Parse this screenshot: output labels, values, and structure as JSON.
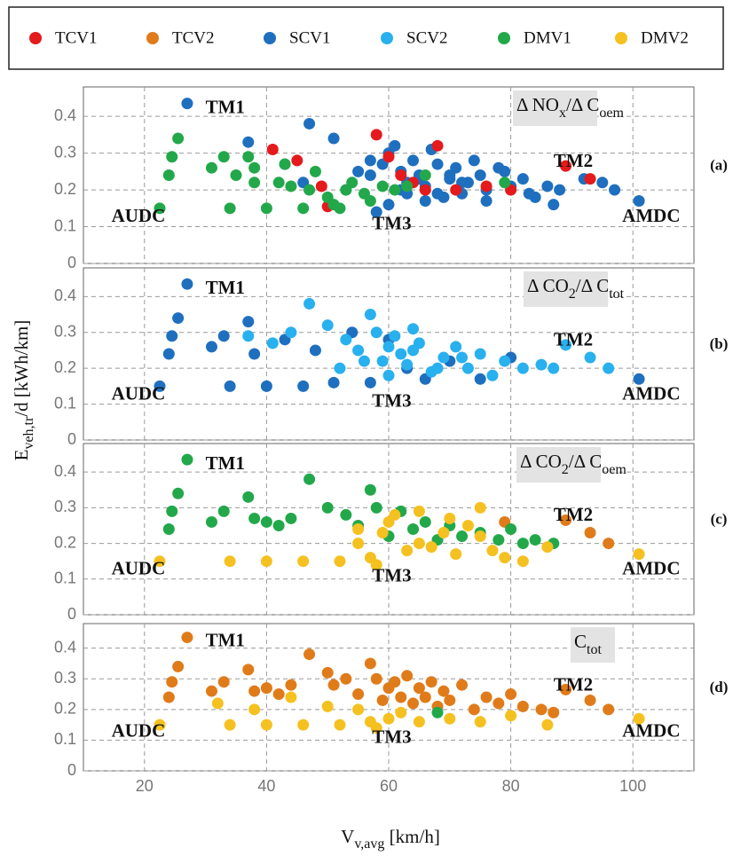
{
  "legend": [
    {
      "name": "TCV1",
      "color": "#e41a1c"
    },
    {
      "name": "TCV2",
      "color": "#e07b1a"
    },
    {
      "name": "SCV1",
      "color": "#1f6fbf"
    },
    {
      "name": "SCV2",
      "color": "#29b0ee"
    },
    {
      "name": "DMV1",
      "color": "#22a84a"
    },
    {
      "name": "DMV2",
      "color": "#f5c120"
    }
  ],
  "y_label": [
    "E",
    "veh,tr",
    "/d [kWh/km]"
  ],
  "x_label": [
    "V",
    "v,avg",
    " [km/h]"
  ],
  "chart_data": [
    {
      "type": "scatter",
      "panel_label": "(a)",
      "formula": [
        "Δ NO",
        "x",
        "/Δ C",
        "oem"
      ],
      "annotations": [
        "TM1",
        "TM2",
        "TM3",
        "AUDC",
        "AMDC"
      ],
      "xlim": [
        10,
        110
      ],
      "xticks": [
        20,
        40,
        60,
        80,
        100
      ],
      "ylim": [
        0,
        0.48
      ],
      "yticks": [
        0,
        0.1,
        0.2,
        0.3,
        0.4
      ],
      "grid": true,
      "series": [
        {
          "name": "SCV1",
          "x": [
            27,
            37,
            47,
            51,
            57,
            58,
            60,
            61,
            62,
            63,
            64,
            65,
            66,
            67,
            68,
            69,
            70,
            71,
            72,
            73,
            74,
            75,
            76,
            78,
            80,
            82,
            84,
            86,
            88,
            92,
            95,
            97,
            101,
            55,
            59,
            62,
            65,
            68,
            72,
            76,
            79,
            83,
            87,
            43,
            46,
            53,
            57,
            60,
            63,
            66,
            70
          ],
          "values": [
            0.435,
            0.33,
            0.38,
            0.34,
            0.28,
            0.14,
            0.3,
            0.32,
            0.25,
            0.22,
            0.28,
            0.24,
            0.21,
            0.31,
            0.27,
            0.18,
            0.23,
            0.26,
            0.19,
            0.22,
            0.28,
            0.24,
            0.17,
            0.26,
            0.21,
            0.23,
            0.18,
            0.21,
            0.2,
            0.23,
            0.22,
            0.2,
            0.17,
            0.25,
            0.27,
            0.2,
            0.23,
            0.19,
            0.22,
            0.2,
            0.25,
            0.19,
            0.16,
            0.27,
            0.22,
            0.2,
            0.24,
            0.16,
            0.19,
            0.17,
            0.24
          ]
        },
        {
          "name": "TCV1",
          "x": [
            41,
            45,
            49,
            50,
            58,
            60,
            62,
            64,
            66,
            68,
            71,
            76,
            80,
            89,
            93
          ],
          "values": [
            0.31,
            0.28,
            0.21,
            0.155,
            0.35,
            0.29,
            0.24,
            0.22,
            0.2,
            0.32,
            0.2,
            0.21,
            0.2,
            0.265,
            0.23
          ]
        },
        {
          "name": "DMV1",
          "x": [
            22.5,
            24,
            24.5,
            25.5,
            31,
            33,
            34,
            35,
            37,
            38,
            40,
            42,
            44,
            46,
            48,
            50,
            51,
            52,
            54,
            56,
            57,
            59,
            61,
            63,
            66,
            79,
            38,
            43,
            47,
            53
          ],
          "values": [
            0.15,
            0.24,
            0.29,
            0.34,
            0.26,
            0.29,
            0.15,
            0.24,
            0.29,
            0.26,
            0.15,
            0.22,
            0.21,
            0.15,
            0.25,
            0.18,
            0.16,
            0.15,
            0.22,
            0.19,
            0.17,
            0.21,
            0.2,
            0.21,
            0.24,
            0.22,
            0.22,
            0.27,
            0.2,
            0.2
          ]
        }
      ]
    },
    {
      "type": "scatter",
      "panel_label": "(b)",
      "formula": [
        "Δ CO",
        "2",
        "/Δ C",
        "tot"
      ],
      "annotations": [
        "TM1",
        "TM2",
        "TM3",
        "AUDC",
        "AMDC"
      ],
      "xlim": [
        10,
        110
      ],
      "xticks": [
        20,
        40,
        60,
        80,
        100
      ],
      "ylim": [
        0,
        0.48
      ],
      "yticks": [
        0,
        0.1,
        0.2,
        0.3,
        0.4
      ],
      "grid": true,
      "series": [
        {
          "name": "SCV1",
          "x": [
            22.5,
            24,
            24.5,
            25.5,
            27,
            31,
            33,
            34,
            37,
            38,
            40,
            43,
            46,
            48,
            51,
            54,
            57,
            60,
            63,
            66,
            70,
            75,
            80,
            101
          ],
          "values": [
            0.15,
            0.24,
            0.29,
            0.34,
            0.435,
            0.26,
            0.29,
            0.15,
            0.33,
            0.24,
            0.15,
            0.28,
            0.15,
            0.25,
            0.16,
            0.3,
            0.16,
            0.28,
            0.2,
            0.17,
            0.22,
            0.17,
            0.23,
            0.17
          ]
        },
        {
          "name": "SCV2",
          "x": [
            37,
            41,
            44,
            47,
            50,
            53,
            55,
            57,
            58,
            59,
            60,
            61,
            62,
            63,
            64,
            65,
            67,
            69,
            71,
            73,
            75,
            77,
            79,
            82,
            85,
            87,
            89,
            93,
            96,
            52,
            56,
            60,
            64,
            68,
            72
          ],
          "values": [
            0.29,
            0.27,
            0.3,
            0.38,
            0.32,
            0.28,
            0.25,
            0.35,
            0.3,
            0.22,
            0.26,
            0.29,
            0.24,
            0.21,
            0.31,
            0.27,
            0.19,
            0.23,
            0.26,
            0.2,
            0.24,
            0.18,
            0.22,
            0.2,
            0.21,
            0.2,
            0.265,
            0.23,
            0.2,
            0.2,
            0.22,
            0.18,
            0.25,
            0.2,
            0.23
          ]
        }
      ]
    },
    {
      "type": "scatter",
      "panel_label": "(c)",
      "formula": [
        "Δ CO",
        "2",
        "/Δ C",
        "oem"
      ],
      "annotations": [
        "TM1",
        "TM2",
        "TM3",
        "AUDC",
        "AMDC"
      ],
      "xlim": [
        10,
        110
      ],
      "xticks": [
        20,
        40,
        60,
        80,
        100
      ],
      "ylim": [
        0,
        0.48
      ],
      "yticks": [
        0,
        0.1,
        0.2,
        0.3,
        0.4
      ],
      "grid": true,
      "series": [
        {
          "name": "TCV2",
          "x": [
            79,
            89,
            93,
            96
          ],
          "values": [
            0.26,
            0.265,
            0.23,
            0.2
          ]
        },
        {
          "name": "DMV1",
          "x": [
            27,
            25.5,
            24.5,
            24,
            31,
            33,
            37,
            38,
            40,
            42,
            44,
            47,
            50,
            53,
            55,
            57,
            58,
            60,
            62,
            64,
            66,
            68,
            70,
            72,
            75,
            78,
            80,
            82,
            84,
            87
          ],
          "values": [
            0.435,
            0.34,
            0.29,
            0.24,
            0.26,
            0.29,
            0.33,
            0.27,
            0.26,
            0.25,
            0.27,
            0.38,
            0.3,
            0.28,
            0.25,
            0.35,
            0.3,
            0.22,
            0.29,
            0.24,
            0.26,
            0.21,
            0.25,
            0.22,
            0.23,
            0.21,
            0.24,
            0.2,
            0.21,
            0.2
          ]
        },
        {
          "name": "DMV2",
          "x": [
            22.5,
            34,
            40,
            46,
            52,
            55,
            57,
            58,
            59,
            61,
            63,
            65,
            67,
            69,
            71,
            73,
            75,
            77,
            79,
            82,
            86,
            55,
            60,
            65,
            70,
            75,
            101
          ],
          "values": [
            0.15,
            0.15,
            0.15,
            0.15,
            0.15,
            0.2,
            0.16,
            0.14,
            0.23,
            0.28,
            0.18,
            0.29,
            0.19,
            0.23,
            0.17,
            0.25,
            0.22,
            0.18,
            0.16,
            0.15,
            0.19,
            0.24,
            0.26,
            0.2,
            0.27,
            0.3,
            0.17
          ]
        }
      ]
    },
    {
      "type": "scatter",
      "panel_label": "(d)",
      "formula": [
        "C",
        "tot"
      ],
      "annotations": [
        "TM1",
        "TM2",
        "TM3",
        "AUDC",
        "AMDC"
      ],
      "xlim": [
        10,
        110
      ],
      "xticks": [
        20,
        40,
        60,
        80,
        100
      ],
      "ylim": [
        0,
        0.48
      ],
      "yticks": [
        0,
        0.1,
        0.2,
        0.3,
        0.4
      ],
      "grid": true,
      "series": [
        {
          "name": "TCV2",
          "x": [
            24,
            24.5,
            25.5,
            27,
            31,
            33,
            37,
            38,
            40,
            42,
            44,
            47,
            50,
            51,
            53,
            55,
            57,
            58,
            59,
            60,
            61,
            62,
            63,
            64,
            65,
            66,
            67,
            68,
            69,
            70,
            72,
            74,
            76,
            78,
            80,
            82,
            85,
            87,
            89,
            93,
            96
          ],
          "values": [
            0.24,
            0.29,
            0.34,
            0.435,
            0.26,
            0.29,
            0.33,
            0.26,
            0.27,
            0.25,
            0.28,
            0.38,
            0.32,
            0.28,
            0.3,
            0.25,
            0.35,
            0.3,
            0.23,
            0.27,
            0.29,
            0.24,
            0.31,
            0.22,
            0.27,
            0.24,
            0.29,
            0.21,
            0.26,
            0.23,
            0.28,
            0.2,
            0.24,
            0.22,
            0.25,
            0.21,
            0.2,
            0.19,
            0.265,
            0.23,
            0.2
          ]
        },
        {
          "name": "DMV2",
          "x": [
            22.5,
            32,
            34,
            38,
            40,
            44,
            46,
            50,
            52,
            55,
            57,
            58,
            60,
            62,
            65,
            70,
            75,
            80,
            86,
            101
          ],
          "values": [
            0.15,
            0.22,
            0.15,
            0.2,
            0.15,
            0.24,
            0.15,
            0.21,
            0.15,
            0.2,
            0.16,
            0.14,
            0.17,
            0.19,
            0.16,
            0.17,
            0.16,
            0.18,
            0.15,
            0.17
          ]
        },
        {
          "name": "DMV1",
          "x": [
            68
          ],
          "values": [
            0.19
          ]
        }
      ]
    }
  ]
}
